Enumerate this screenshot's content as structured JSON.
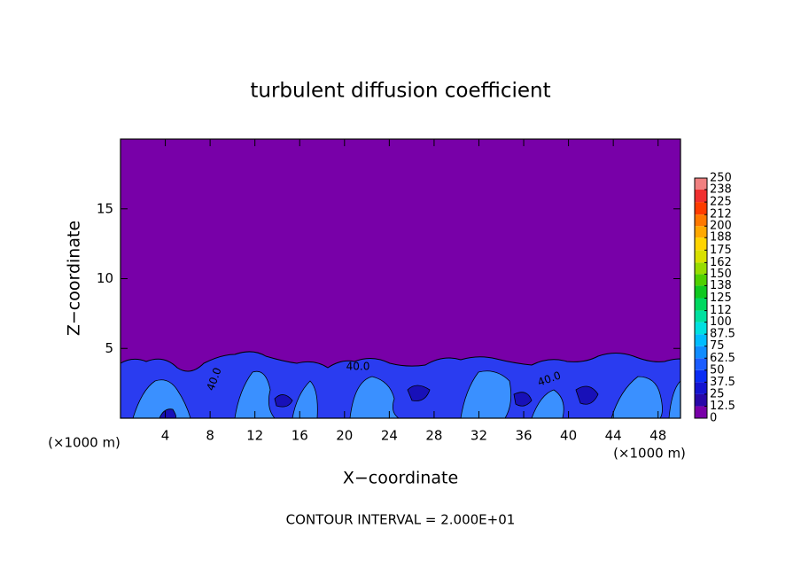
{
  "chart_data": {
    "type": "contour",
    "title": "turbulent diffusion coefficient",
    "x_label": "X−coordinate",
    "y_label": "Z−coordinate",
    "x_unit_label": "(×1000 m)",
    "footer": "CONTOUR INTERVAL = 2.000E+01",
    "xlim": [
      0,
      50
    ],
    "xticks": [
      4,
      8,
      12,
      16,
      20,
      24,
      28,
      32,
      36,
      40,
      44,
      48
    ],
    "ylim": [
      0,
      20
    ],
    "yticks": [
      5,
      10,
      15
    ],
    "colorbar": {
      "levels": [
        0,
        12.5,
        25,
        37.5,
        50,
        62.5,
        75,
        87.5,
        100,
        112,
        125,
        138,
        150,
        162,
        175,
        188,
        200,
        212,
        225,
        238,
        250
      ],
      "colors": [
        "#7800a8",
        "#2808a8",
        "#1414d0",
        "#0a2cf4",
        "#1a5cff",
        "#108cff",
        "#00bcff",
        "#00e0e0",
        "#00e0a0",
        "#00d860",
        "#10c820",
        "#50d000",
        "#98dc00",
        "#d8e000",
        "#ffd400",
        "#ffa800",
        "#ff7800",
        "#ff3c00",
        "#f03030",
        "#f08080"
      ]
    },
    "contour_labels": [
      "40.0",
      "40.0",
      "40.0"
    ]
  }
}
